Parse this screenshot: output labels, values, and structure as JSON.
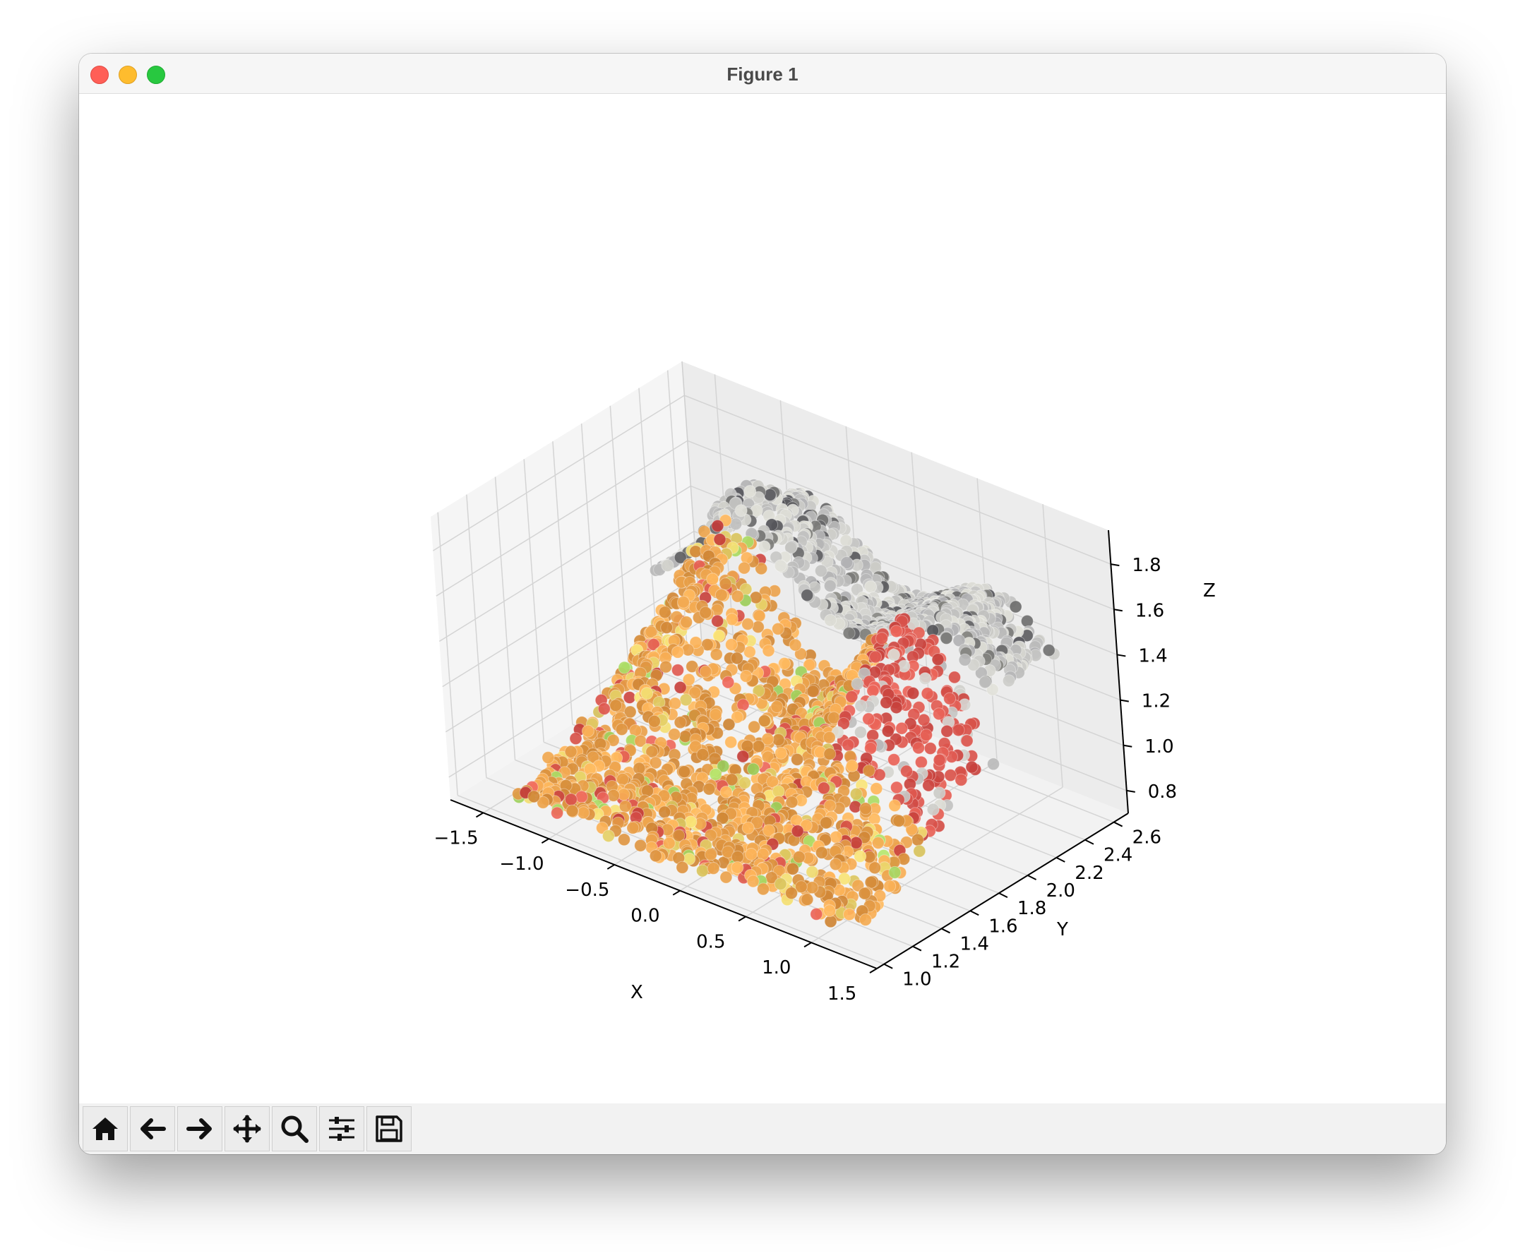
{
  "window": {
    "title": "Figure 1"
  },
  "toolbar": {
    "buttons": [
      {
        "name": "home",
        "icon": "home-icon"
      },
      {
        "name": "back",
        "icon": "arrow-left-icon"
      },
      {
        "name": "forward",
        "icon": "arrow-right-icon"
      },
      {
        "name": "pan",
        "icon": "move-icon"
      },
      {
        "name": "zoom",
        "icon": "magnifier-icon"
      },
      {
        "name": "configure-subplots",
        "icon": "sliders-icon"
      },
      {
        "name": "save",
        "icon": "floppy-disk-icon"
      }
    ]
  },
  "chart_data": {
    "type": "scatter",
    "projection": "3d",
    "xlabel": "X",
    "ylabel": "Y",
    "zlabel": "Z",
    "x_ticks": [
      "−1.5",
      "−1.0",
      "−0.5",
      "0.0",
      "0.5",
      "1.0",
      "1.5"
    ],
    "y_ticks": [
      "1.0",
      "1.2",
      "1.4",
      "1.6",
      "1.8",
      "2.0",
      "2.2",
      "2.4",
      "2.6"
    ],
    "z_ticks": [
      "0.8",
      "1.0",
      "1.2",
      "1.4",
      "1.6",
      "1.8"
    ],
    "xlim": [
      -1.75,
      1.5
    ],
    "ylim": [
      0.95,
      2.7
    ],
    "zlim": [
      0.7,
      1.95
    ],
    "grid": true,
    "colors": {
      "back_surface": "#c9c9c6",
      "dark_edge": "#6e6e6e",
      "front_surface": "#e9a04a",
      "red_region": "#d9534b",
      "yellow_highlight": "#e8d36a",
      "green_highlight": "#a7d863"
    }
  }
}
